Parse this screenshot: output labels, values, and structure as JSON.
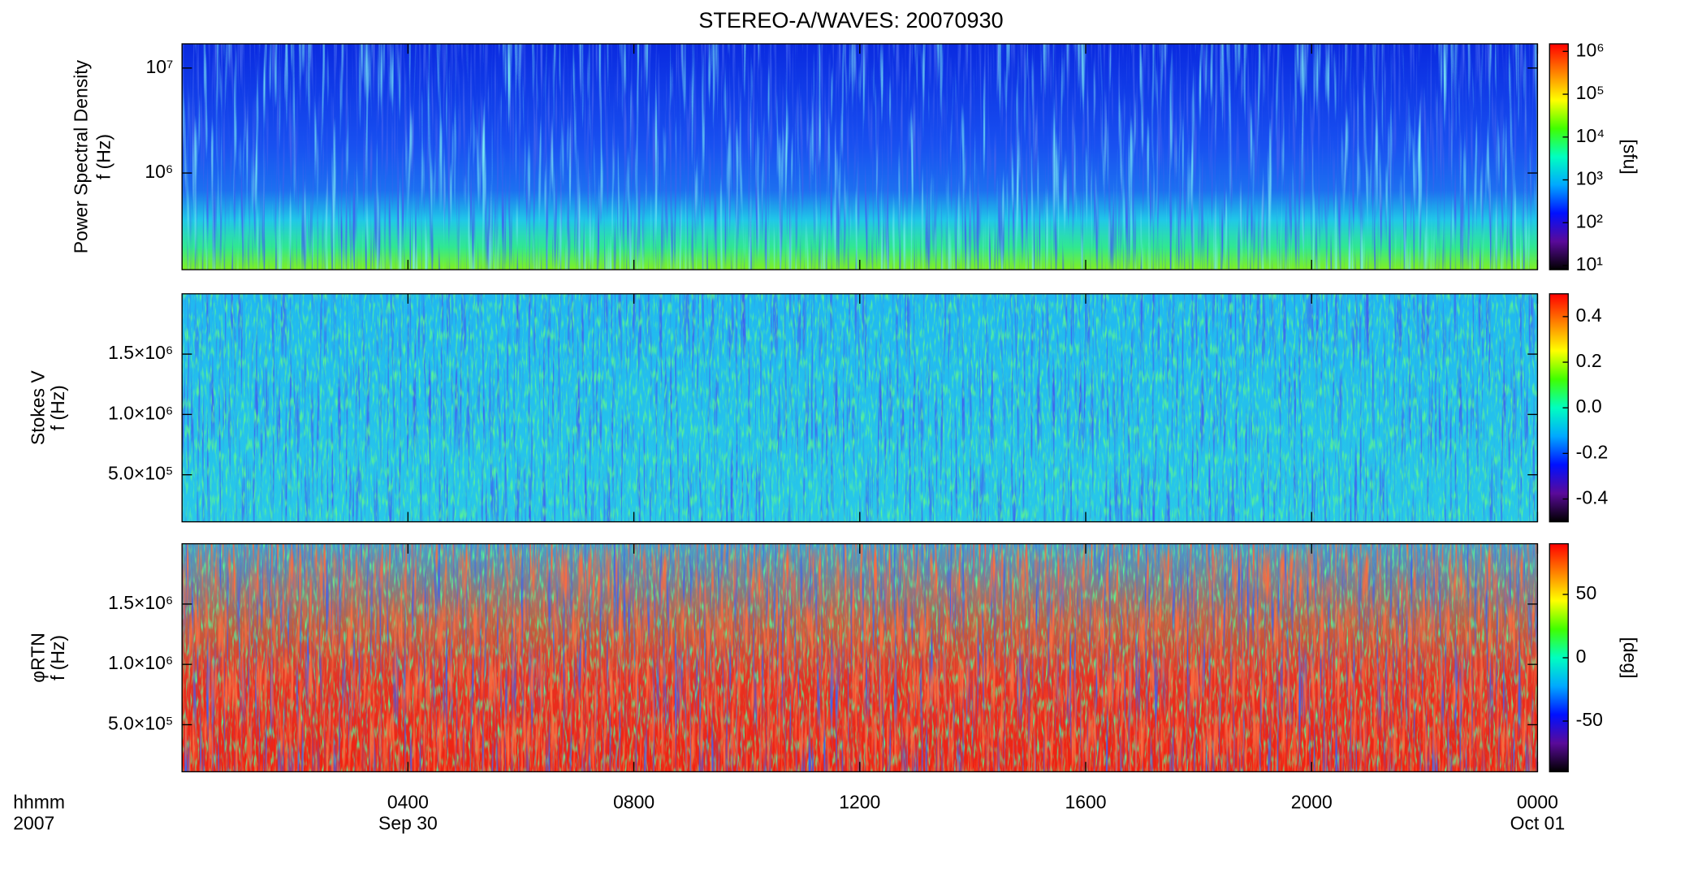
{
  "title": "STEREO-A/WAVES: 20070930",
  "colormap": [
    "#000000",
    "#5a0a9a",
    "#0010ff",
    "#00a8ff",
    "#00ffc0",
    "#40ff00",
    "#ffff00",
    "#ff8000",
    "#ff0000"
  ],
  "x_axis": {
    "unit_label": "hhmm",
    "year": "2007",
    "xlim": [
      0,
      24
    ],
    "xticks": [
      {
        "value": 4,
        "label": "0400"
      },
      {
        "value": 8,
        "label": "0800"
      },
      {
        "value": 12,
        "label": "1200"
      },
      {
        "value": 16,
        "label": "1600"
      },
      {
        "value": 20,
        "label": "2000"
      },
      {
        "value": 24,
        "label": "0000"
      }
    ],
    "date_labels": [
      {
        "value": 4,
        "label": "Sep 30"
      },
      {
        "value": 24,
        "label": "Oct 01"
      }
    ]
  },
  "chart_data": [
    {
      "type": "heatmap",
      "ylabel": [
        "Power Spectral Density",
        "f (Hz)"
      ],
      "ylog": true,
      "ylim": [
        120000,
        17000000
      ],
      "yticks": [
        {
          "value": 1000000,
          "label": "10⁶"
        },
        {
          "value": 10000000,
          "label": "10⁷"
        }
      ],
      "clog": true,
      "clim": [
        8,
        1500000
      ],
      "cticks": [
        {
          "value": 10,
          "label": "10¹"
        },
        {
          "value": 100,
          "label": "10²"
        },
        {
          "value": 1000,
          "label": "10³"
        },
        {
          "value": 10000,
          "label": "10⁴"
        },
        {
          "value": 100000,
          "label": "10⁵"
        },
        {
          "value": 1000000,
          "label": "10⁶"
        }
      ],
      "clabel": "[sfu]"
    },
    {
      "type": "heatmap",
      "ylabel": [
        "Stokes V",
        "f (Hz)"
      ],
      "ylog": false,
      "ylim": [
        110000,
        2000000
      ],
      "yticks": [
        {
          "value": 500000,
          "label": "5.0×10⁵"
        },
        {
          "value": 1000000,
          "label": "1.0×10⁶"
        },
        {
          "value": 1500000,
          "label": "1.5×10⁶"
        }
      ],
      "clog": false,
      "clim": [
        -0.5,
        0.5
      ],
      "cticks": [
        -0.4,
        -0.2,
        {
          "value": 0,
          "label": "0.0"
        },
        0.2,
        0.4
      ]
    },
    {
      "type": "heatmap",
      "ylabel": [
        "φRTN",
        "f (Hz)"
      ],
      "ylog": false,
      "ylim": [
        110000,
        2000000
      ],
      "yticks": [
        {
          "value": 500000,
          "label": "5.0×10⁵"
        },
        {
          "value": 1000000,
          "label": "1.0×10⁶"
        },
        {
          "value": 1500000,
          "label": "1.5×10⁶"
        }
      ],
      "clog": false,
      "clim": [
        -90,
        90
      ],
      "cticks": [
        -50,
        0,
        50
      ],
      "clabel": "[deg]"
    }
  ]
}
